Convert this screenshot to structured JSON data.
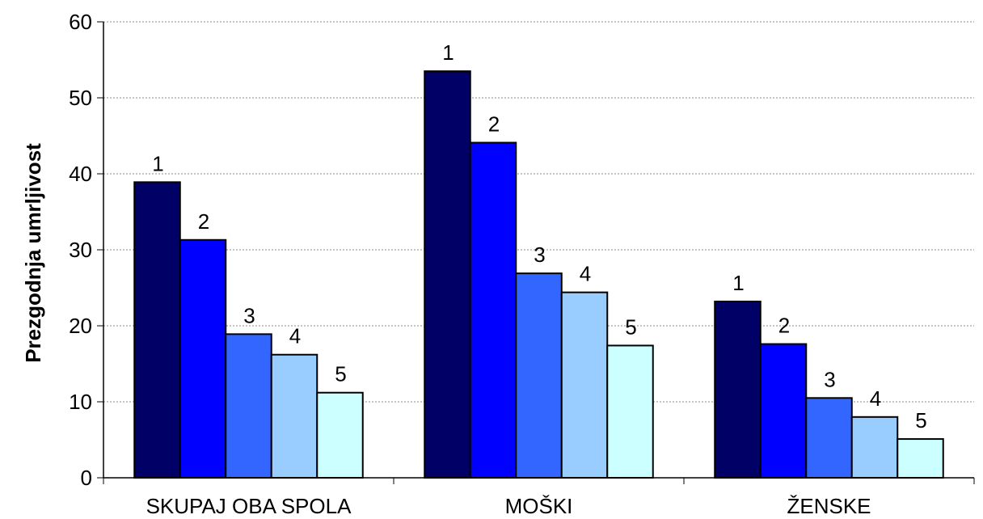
{
  "chart_data": {
    "type": "bar",
    "title": "",
    "xlabel": "",
    "ylabel": "Prezgodnja umrljivost",
    "ylim": [
      0,
      60
    ],
    "yticks": [
      0,
      10,
      20,
      30,
      40,
      50,
      60
    ],
    "grid": "horizontal dotted",
    "categories": [
      "SKUPAJ OBA SPOLA",
      "MOŠKI",
      "ŽENSKE"
    ],
    "series": [
      {
        "label": "1",
        "color": "#000066",
        "values": [
          38.9,
          53.5,
          23.2
        ]
      },
      {
        "label": "2",
        "color": "#0000ff",
        "values": [
          31.3,
          44.1,
          17.6
        ]
      },
      {
        "label": "3",
        "color": "#3366ff",
        "values": [
          18.9,
          26.9,
          10.5
        ]
      },
      {
        "label": "4",
        "color": "#99ccff",
        "values": [
          16.2,
          24.4,
          8.0
        ]
      },
      {
        "label": "5",
        "color": "#ccffff",
        "values": [
          11.2,
          17.4,
          5.1
        ]
      }
    ]
  }
}
